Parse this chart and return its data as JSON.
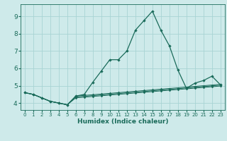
{
  "xlabel": "Humidex (Indice chaleur)",
  "xlim": [
    -0.5,
    23.5
  ],
  "ylim": [
    3.6,
    9.7
  ],
  "yticks": [
    4,
    5,
    6,
    7,
    8,
    9
  ],
  "xticks": [
    0,
    1,
    2,
    3,
    4,
    5,
    6,
    7,
    8,
    9,
    10,
    11,
    12,
    13,
    14,
    15,
    16,
    17,
    18,
    19,
    20,
    21,
    22,
    23
  ],
  "bg_color": "#ceeaea",
  "grid_color": "#a8d4d4",
  "line_color": "#1a6b5a",
  "lines": [
    [
      4.6,
      4.5,
      4.3,
      4.1,
      4.0,
      3.9,
      4.4,
      4.5,
      5.2,
      5.85,
      6.5,
      6.5,
      7.0,
      8.2,
      8.75,
      9.3,
      8.2,
      7.3,
      5.9,
      4.85,
      5.15,
      5.3,
      5.55,
      5.05
    ],
    [
      4.6,
      4.5,
      4.3,
      4.1,
      4.0,
      3.9,
      4.4,
      4.44,
      4.48,
      4.52,
      4.56,
      4.6,
      4.64,
      4.68,
      4.72,
      4.76,
      4.8,
      4.84,
      4.88,
      4.92,
      4.96,
      5.0,
      5.04,
      5.08
    ],
    [
      4.6,
      4.5,
      4.3,
      4.1,
      4.0,
      3.9,
      4.35,
      4.39,
      4.43,
      4.47,
      4.51,
      4.55,
      4.59,
      4.63,
      4.67,
      4.71,
      4.75,
      4.79,
      4.83,
      4.87,
      4.91,
      4.95,
      4.99,
      5.03
    ],
    [
      4.6,
      4.5,
      4.3,
      4.1,
      4.0,
      3.9,
      4.3,
      4.34,
      4.38,
      4.42,
      4.46,
      4.5,
      4.54,
      4.58,
      4.62,
      4.66,
      4.7,
      4.74,
      4.78,
      4.82,
      4.86,
      4.9,
      4.94,
      4.98
    ]
  ]
}
